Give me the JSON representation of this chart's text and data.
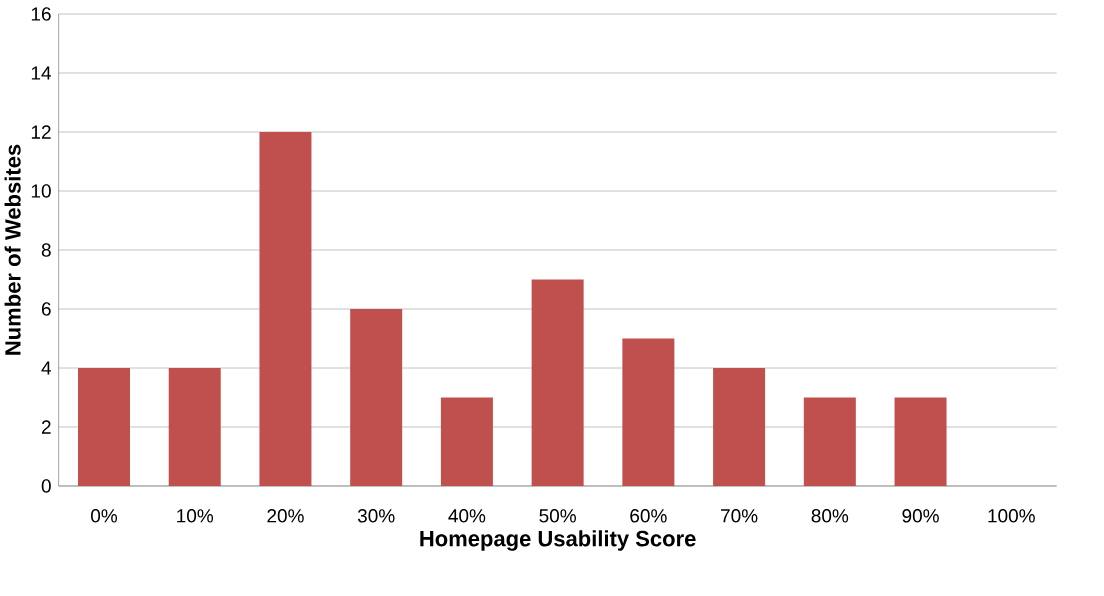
{
  "chart_data": {
    "type": "bar",
    "xlabel": "Homepage Usability Score",
    "ylabel": "Number of Websites",
    "categories": [
      "0%",
      "10%",
      "20%",
      "30%",
      "40%",
      "50%",
      "60%",
      "70%",
      "80%",
      "90%",
      "100%"
    ],
    "values": [
      4,
      4,
      12,
      6,
      3,
      7,
      5,
      4,
      3,
      3,
      0
    ],
    "color": "#c0504d",
    "ylim": [
      0,
      16
    ],
    "yticks": [
      0,
      2,
      4,
      6,
      8,
      10,
      12,
      14,
      16
    ],
    "grid": "y"
  }
}
